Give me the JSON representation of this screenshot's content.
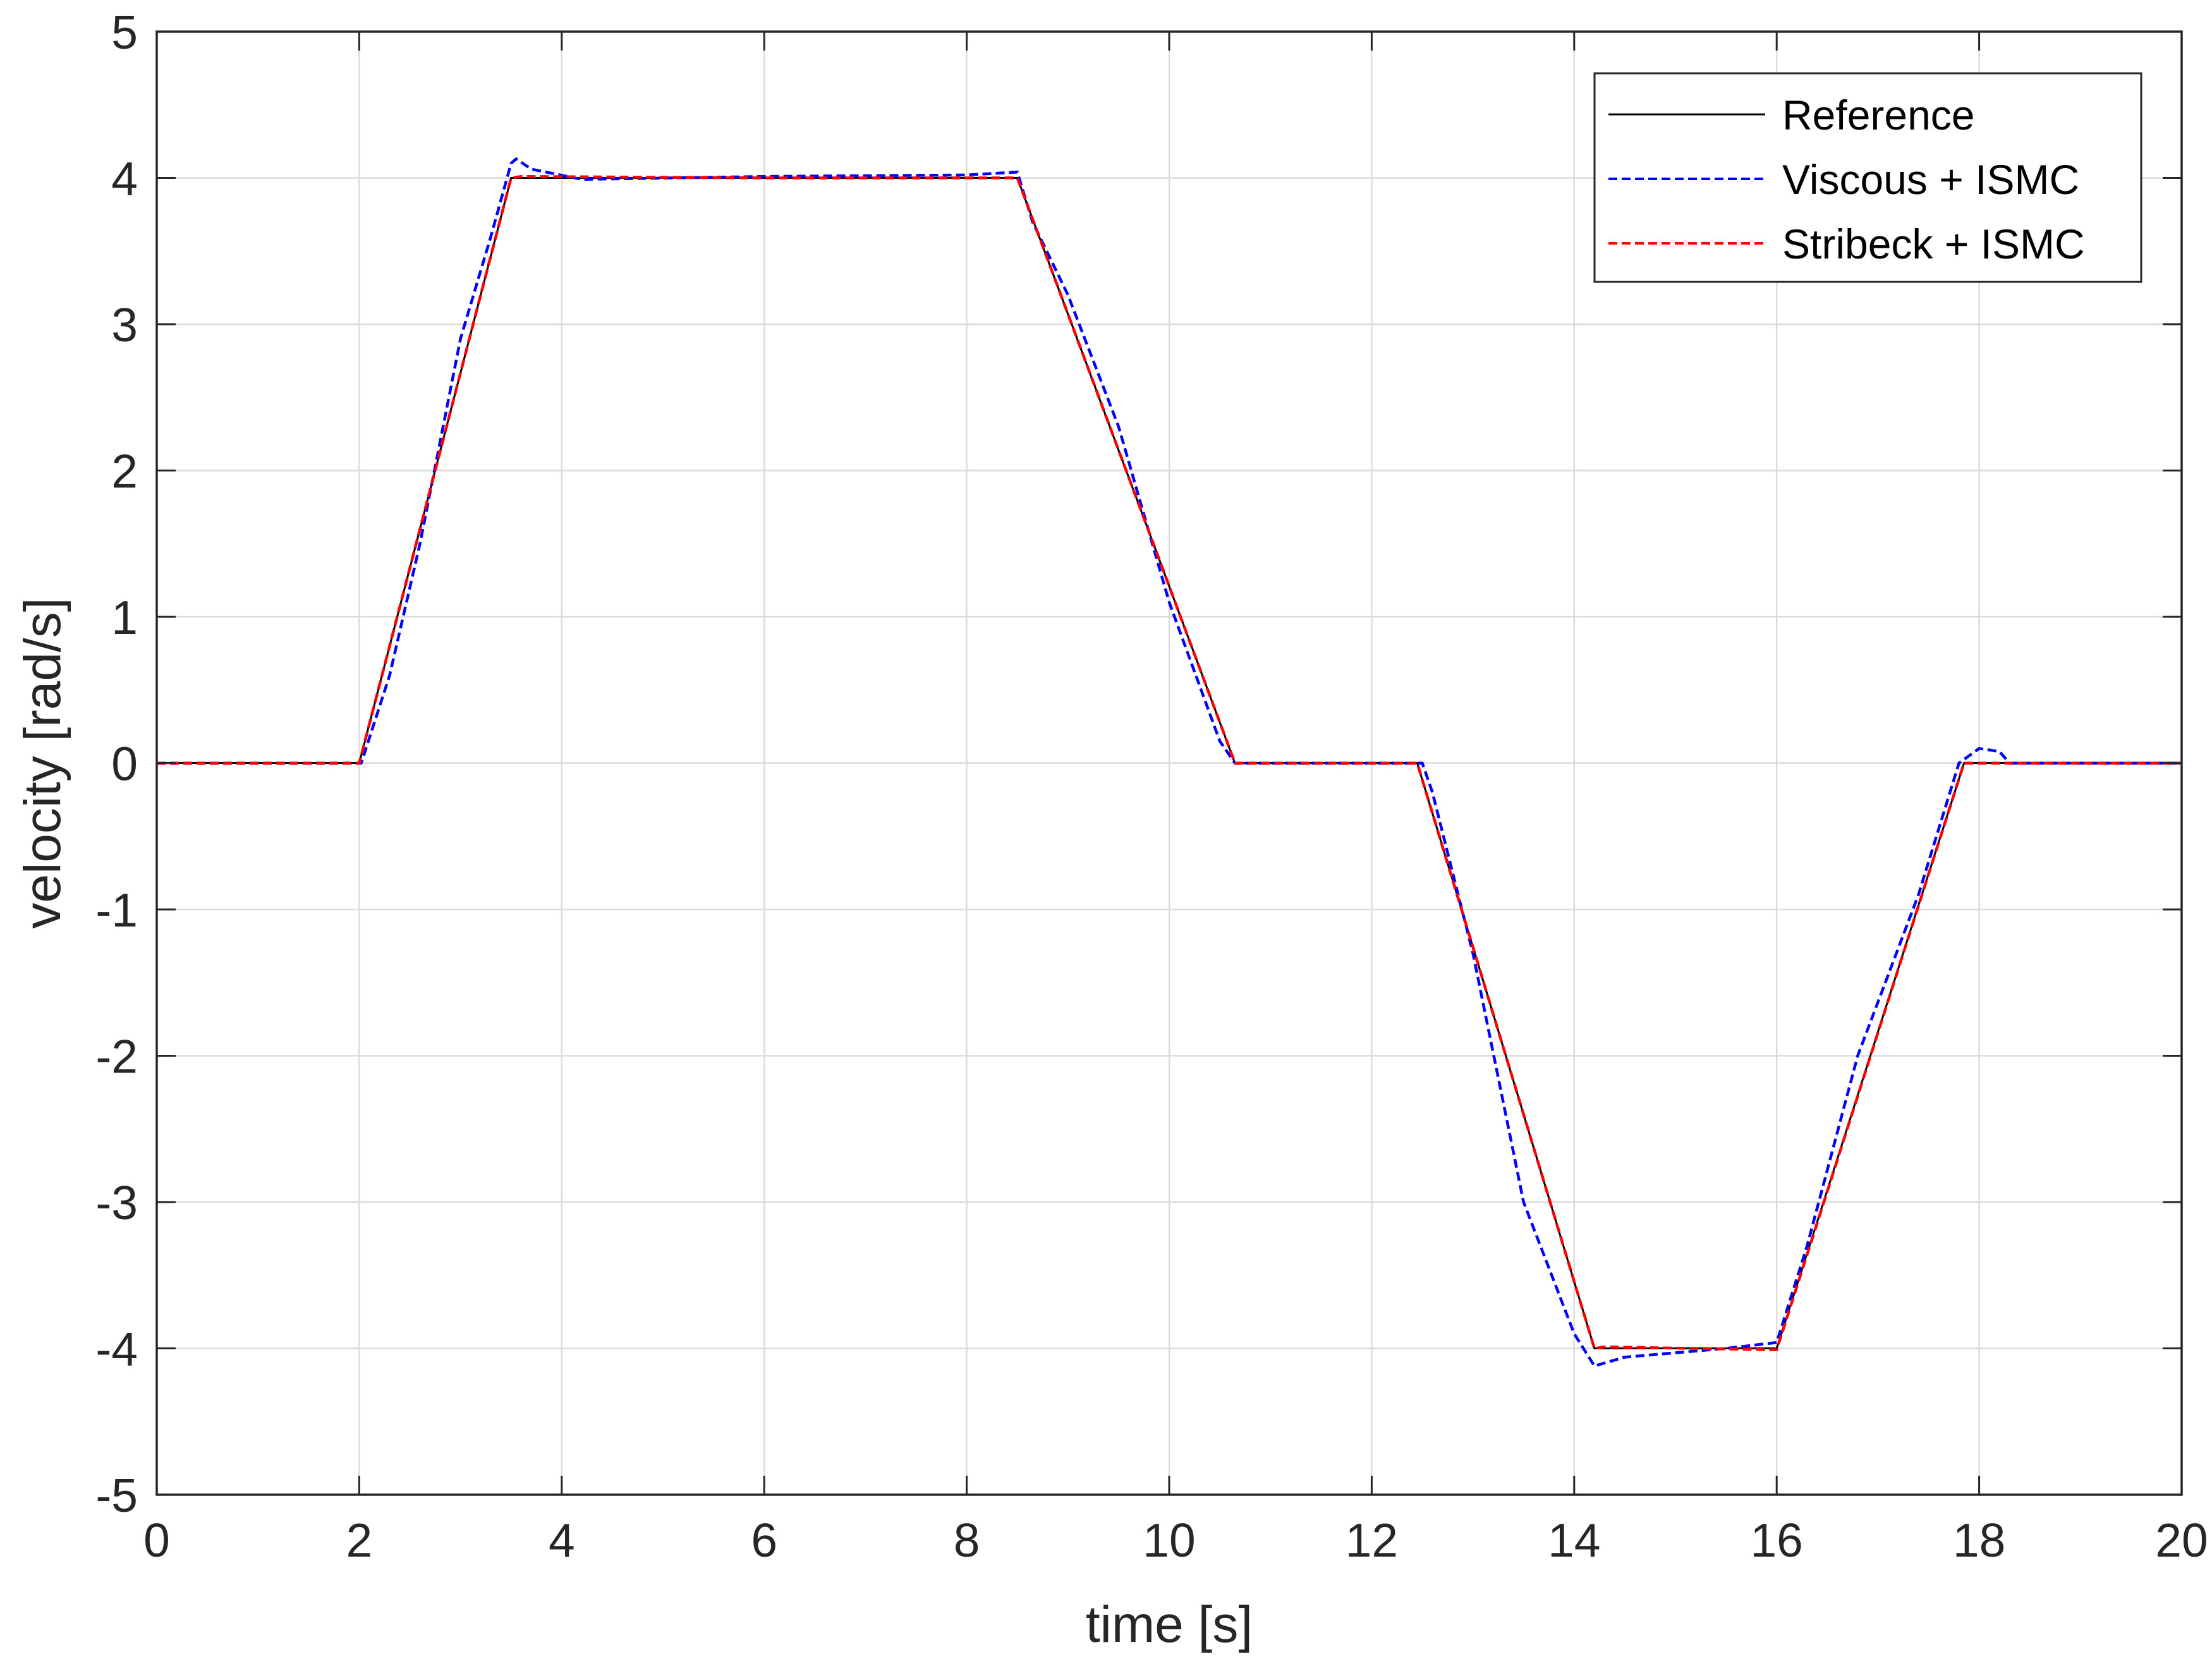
{
  "chart_data": {
    "type": "line",
    "title": "",
    "xlabel": "time [s]",
    "ylabel": "velocity [rad/s]",
    "xlim": [
      0,
      20
    ],
    "ylim": [
      -5,
      5
    ],
    "xticks": [
      "0",
      "2",
      "4",
      "6",
      "8",
      "10",
      "12",
      "14",
      "16",
      "18",
      "20"
    ],
    "yticks": [
      "5",
      "4",
      "3",
      "2",
      "1",
      "0",
      "-1",
      "-2",
      "-3",
      "-4",
      "-5"
    ],
    "grid": true,
    "legend_position": "top-right",
    "series": [
      {
        "name": "Reference",
        "color": "#000000",
        "style": "solid",
        "points": [
          [
            0,
            0
          ],
          [
            2,
            0
          ],
          [
            3.5,
            4
          ],
          [
            8.5,
            4
          ],
          [
            10.65,
            0
          ],
          [
            12.45,
            0
          ],
          [
            14.2,
            -4
          ],
          [
            16,
            -4
          ],
          [
            17.85,
            0
          ],
          [
            20,
            0
          ]
        ]
      },
      {
        "name": "Viscous + ISMC",
        "color": "#0000ff",
        "style": "dashed",
        "points": [
          [
            0,
            0
          ],
          [
            2.02,
            0
          ],
          [
            2.3,
            0.6
          ],
          [
            2.6,
            1.5
          ],
          [
            3.0,
            2.9
          ],
          [
            3.3,
            3.6
          ],
          [
            3.5,
            4.1
          ],
          [
            3.55,
            4.13
          ],
          [
            3.7,
            4.06
          ],
          [
            4.2,
            3.99
          ],
          [
            6,
            4.01
          ],
          [
            8,
            4.02
          ],
          [
            8.5,
            4.04
          ],
          [
            8.65,
            3.7
          ],
          [
            9.0,
            3.2
          ],
          [
            9.5,
            2.3
          ],
          [
            10.0,
            1.1
          ],
          [
            10.5,
            0.15
          ],
          [
            10.65,
            0
          ],
          [
            12.5,
            0
          ],
          [
            12.6,
            -0.2
          ],
          [
            13.0,
            -1.3
          ],
          [
            13.5,
            -3.0
          ],
          [
            14.0,
            -3.9
          ],
          [
            14.2,
            -4.12
          ],
          [
            14.5,
            -4.06
          ],
          [
            15.5,
            -4.0
          ],
          [
            16.0,
            -3.96
          ],
          [
            16.3,
            -3.3
          ],
          [
            16.8,
            -2.0
          ],
          [
            17.4,
            -0.9
          ],
          [
            17.8,
            0
          ],
          [
            18.0,
            0.1
          ],
          [
            18.2,
            0.08
          ],
          [
            18.3,
            0
          ],
          [
            20,
            0
          ]
        ]
      },
      {
        "name": "Stribeck + ISMC",
        "color": "#ff0000",
        "style": "dashed",
        "points": [
          [
            0,
            0
          ],
          [
            2,
            0
          ],
          [
            3.5,
            4.0
          ],
          [
            3.6,
            4.01
          ],
          [
            6,
            4.0
          ],
          [
            8.5,
            4.0
          ],
          [
            10.65,
            0
          ],
          [
            12.45,
            0
          ],
          [
            14.2,
            -4.0
          ],
          [
            14.3,
            -3.99
          ],
          [
            16,
            -4.01
          ],
          [
            17.85,
            0
          ],
          [
            20,
            0
          ]
        ]
      }
    ]
  }
}
